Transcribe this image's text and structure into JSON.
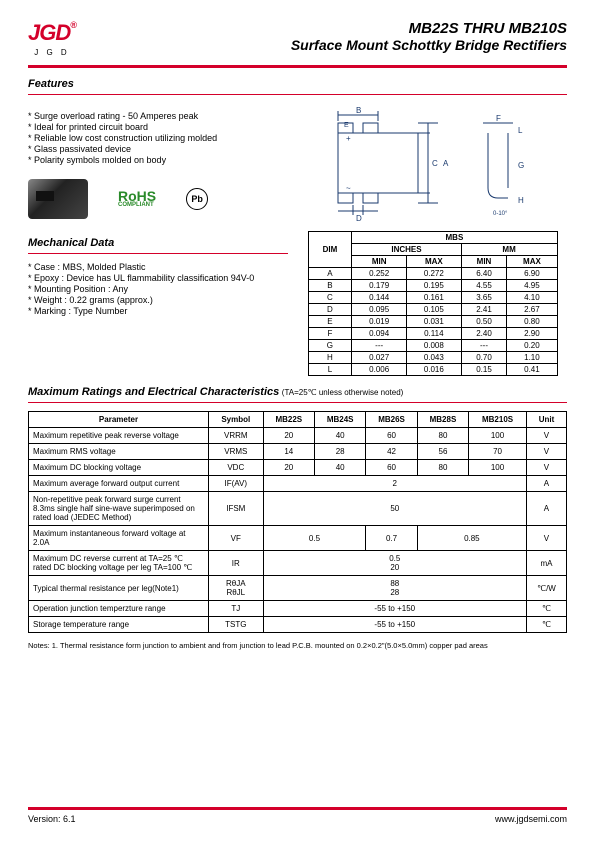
{
  "logo": {
    "main": "JGD",
    "sub": "J G D",
    "reg": "®"
  },
  "title": {
    "main": "MB22S THRU MB210S",
    "sub": "Surface Mount Schottky Bridge Rectifiers"
  },
  "sections": {
    "features": "Features",
    "mech": "Mechanical Data",
    "ratings": "Maximum Ratings and Electrical Characteristics",
    "ratings_note": "(TA=25℃ unless otherwise noted)"
  },
  "features": [
    "* Surge overload rating - 50 Amperes peak",
    "* Ideal for printed circuit board",
    "* Reliable low cost construction utilizing molded",
    "* Glass passivated device",
    "* Polarity symbols molded on body"
  ],
  "rohs": {
    "line1": "RoHS",
    "line2": "COMPLIANT"
  },
  "ul": "Pb",
  "mech": [
    "* Case : MBS, Molded Plastic",
    "* Epoxy : Device has UL flammability classification 94V-0",
    "* Mounting Position : Any",
    "* Weight : 0.22 grams (approx.)",
    "* Marking : Type Number"
  ],
  "dim_table": {
    "title": "MBS",
    "head1": [
      "DIM",
      "INCHES",
      "MM"
    ],
    "head2": [
      "MIN",
      "MAX",
      "MIN",
      "MAX"
    ],
    "rows": [
      [
        "A",
        "0.252",
        "0.272",
        "6.40",
        "6.90"
      ],
      [
        "B",
        "0.179",
        "0.195",
        "4.55",
        "4.95"
      ],
      [
        "C",
        "0.144",
        "0.161",
        "3.65",
        "4.10"
      ],
      [
        "D",
        "0.095",
        "0.105",
        "2.41",
        "2.67"
      ],
      [
        "E",
        "0.019",
        "0.031",
        "0.50",
        "0.80"
      ],
      [
        "F",
        "0.094",
        "0.114",
        "2.40",
        "2.90"
      ],
      [
        "G",
        "---",
        "0.008",
        "---",
        "0.20"
      ],
      [
        "H",
        "0.027",
        "0.043",
        "0.70",
        "1.10"
      ],
      [
        "L",
        "0.006",
        "0.016",
        "0.15",
        "0.41"
      ]
    ]
  },
  "ratings": {
    "headers": [
      "Parameter",
      "Symbol",
      "MB22S",
      "MB24S",
      "MB26S",
      "MB28S",
      "MB210S",
      "Unit"
    ],
    "rows": [
      {
        "param": "Maximum repetitive peak reverse voltage",
        "symbol": "VRRM",
        "v": [
          "20",
          "40",
          "60",
          "80",
          "100"
        ],
        "unit": "V"
      },
      {
        "param": "Maximum RMS voltage",
        "symbol": "VRMS",
        "v": [
          "14",
          "28",
          "42",
          "56",
          "70"
        ],
        "unit": "V"
      },
      {
        "param": "Maximum DC blocking voltage",
        "symbol": "VDC",
        "v": [
          "20",
          "40",
          "60",
          "80",
          "100"
        ],
        "unit": "V"
      },
      {
        "param": "Maximum average forward output current",
        "symbol": "IF(AV)",
        "span": "2",
        "unit": "A"
      },
      {
        "param": "Non-repetitive peak forward surge current 8.3ms single half sine-wave superimposed on rated load (JEDEC Method)",
        "symbol": "IFSM",
        "span": "50",
        "unit": "A"
      },
      {
        "param": "Maximum instantaneous forward voltage at 2.0A",
        "symbol": "VF",
        "triple": [
          "0.5",
          "0.7",
          "0.85"
        ],
        "unit": "V"
      },
      {
        "param": "Maximum DC reverse current at    TA=25 ℃\nrated DC blocking voltage per leg    TA=100 ℃",
        "symbol": "IR",
        "span": "0.5\n20",
        "unit": "mA"
      },
      {
        "param": "Typical thermal resistance per leg(Note1)",
        "symbol": "RθJA\nRθJL",
        "span": "88\n28",
        "unit": "℃/W"
      },
      {
        "param": "Operation junction temperzture range",
        "symbol": "TJ",
        "span": "-55 to +150",
        "unit": "℃"
      },
      {
        "param": "Storage temperature range",
        "symbol": "TSTG",
        "span": "-55 to +150",
        "unit": "℃"
      }
    ]
  },
  "notes": "Notes: 1. Thermal resistance form junction to ambient and from junction to lead P.C.B. mounted on 0.2×0.2\"(5.0×5.0mm) copper pad areas",
  "footer": {
    "version": "Version: 6.1",
    "url": "www.jgdsemi.com"
  }
}
